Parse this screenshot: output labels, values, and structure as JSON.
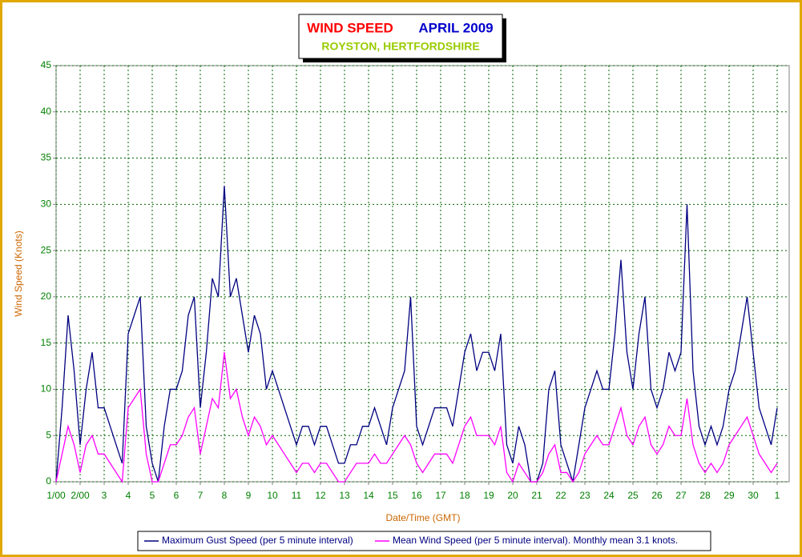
{
  "chart_data": {
    "type": "line",
    "title": "WIND SPEED",
    "period": "APRIL 2009",
    "subtitle": "ROYSTON, HERTFORDSHIRE",
    "ylabel": "Wind Speed (Knots)",
    "xlabel": "Date/Time (GMT)",
    "x": [
      0,
      6,
      12,
      18,
      24,
      30,
      36,
      42,
      48,
      54,
      60,
      66,
      72,
      78,
      84,
      90,
      96,
      102,
      108,
      114,
      120,
      126,
      132,
      138,
      144,
      150,
      156,
      162,
      168,
      174,
      180,
      186,
      192,
      198,
      204,
      210,
      216,
      222,
      228,
      234,
      240,
      246,
      252,
      258,
      264,
      270,
      276,
      282,
      288,
      294,
      300,
      306,
      312,
      318,
      324,
      330,
      336,
      342,
      348,
      354,
      360,
      366,
      372,
      378,
      384,
      390,
      396,
      402,
      408,
      414,
      420,
      426,
      432,
      438,
      444,
      450,
      456,
      462,
      468,
      474,
      480,
      486,
      492,
      498,
      504,
      510,
      516,
      522,
      528,
      534,
      540,
      546,
      552,
      558,
      564,
      570,
      576,
      582,
      588,
      594,
      600,
      606,
      612,
      618,
      624,
      630,
      636,
      642,
      648,
      654,
      660,
      666,
      672,
      678,
      684,
      690,
      696,
      702,
      708,
      714,
      720
    ],
    "series": [
      {
        "name": "Maximum Gust Speed (per 5 minute interval)",
        "color": "#000080",
        "values": [
          0,
          8,
          18,
          12,
          4,
          10,
          14,
          8,
          8,
          6,
          4,
          2,
          16,
          18,
          20,
          6,
          2,
          0,
          6,
          10,
          10,
          12,
          18,
          20,
          8,
          14,
          22,
          20,
          32,
          20,
          22,
          18,
          14,
          18,
          16,
          10,
          12,
          10,
          8,
          6,
          4,
          6,
          6,
          4,
          6,
          6,
          4,
          2,
          2,
          4,
          4,
          6,
          6,
          8,
          6,
          4,
          8,
          10,
          12,
          20,
          6,
          4,
          6,
          8,
          8,
          8,
          6,
          10,
          14,
          16,
          12,
          14,
          14,
          12,
          16,
          4,
          2,
          6,
          4,
          0,
          0,
          2,
          10,
          12,
          4,
          2,
          0,
          4,
          8,
          10,
          12,
          10,
          10,
          16,
          24,
          14,
          10,
          16,
          20,
          10,
          8,
          10,
          14,
          12,
          14,
          30,
          12,
          6,
          4,
          6,
          4,
          6,
          10,
          12,
          16,
          20,
          14,
          8,
          6,
          4,
          8
        ]
      },
      {
        "name": "Mean Wind Speed (per 5 minute interval). Monthly mean 3.1 knots.",
        "color": "#ff00ff",
        "values": [
          0,
          3,
          6,
          4,
          1,
          4,
          5,
          3,
          3,
          2,
          1,
          0,
          8,
          9,
          10,
          3,
          0,
          0,
          2,
          4,
          4,
          5,
          7,
          8,
          3,
          6,
          9,
          8,
          14,
          9,
          10,
          7,
          5,
          7,
          6,
          4,
          5,
          4,
          3,
          2,
          1,
          2,
          2,
          1,
          2,
          2,
          1,
          0,
          0,
          1,
          2,
          2,
          2,
          3,
          2,
          2,
          3,
          4,
          5,
          4,
          2,
          1,
          2,
          3,
          3,
          3,
          2,
          4,
          6,
          7,
          5,
          5,
          5,
          4,
          6,
          1,
          0,
          2,
          1,
          0,
          0,
          1,
          3,
          4,
          1,
          1,
          0,
          1,
          3,
          4,
          5,
          4,
          4,
          6,
          8,
          5,
          4,
          6,
          7,
          4,
          3,
          4,
          6,
          5,
          5,
          9,
          4,
          2,
          1,
          2,
          1,
          2,
          4,
          5,
          6,
          7,
          5,
          3,
          2,
          1,
          2
        ]
      }
    ],
    "xlim": [
      0,
      732
    ],
    "xticks": [
      {
        "value": 0,
        "label": "1/00"
      },
      {
        "value": 24,
        "label": "2/00"
      },
      {
        "value": 48,
        "label": "3"
      },
      {
        "value": 72,
        "label": "4"
      },
      {
        "value": 96,
        "label": "5"
      },
      {
        "value": 120,
        "label": "6"
      },
      {
        "value": 144,
        "label": "7"
      },
      {
        "value": 168,
        "label": "8"
      },
      {
        "value": 192,
        "label": "9"
      },
      {
        "value": 216,
        "label": "10"
      },
      {
        "value": 240,
        "label": "11"
      },
      {
        "value": 264,
        "label": "12"
      },
      {
        "value": 288,
        "label": "13"
      },
      {
        "value": 312,
        "label": "14"
      },
      {
        "value": 336,
        "label": "15"
      },
      {
        "value": 360,
        "label": "16"
      },
      {
        "value": 384,
        "label": "17"
      },
      {
        "value": 408,
        "label": "18"
      },
      {
        "value": 432,
        "label": "19"
      },
      {
        "value": 456,
        "label": "20"
      },
      {
        "value": 480,
        "label": "21"
      },
      {
        "value": 504,
        "label": "22"
      },
      {
        "value": 528,
        "label": "23"
      },
      {
        "value": 552,
        "label": "24"
      },
      {
        "value": 576,
        "label": "25"
      },
      {
        "value": 600,
        "label": "26"
      },
      {
        "value": 624,
        "label": "27"
      },
      {
        "value": 648,
        "label": "28"
      },
      {
        "value": 672,
        "label": "29"
      },
      {
        "value": 696,
        "label": "30"
      },
      {
        "value": 720,
        "label": "1"
      }
    ],
    "ylim": [
      0,
      45
    ],
    "yticks": [
      0,
      5,
      10,
      15,
      20,
      25,
      30,
      35,
      40,
      45
    ],
    "grid": true
  }
}
